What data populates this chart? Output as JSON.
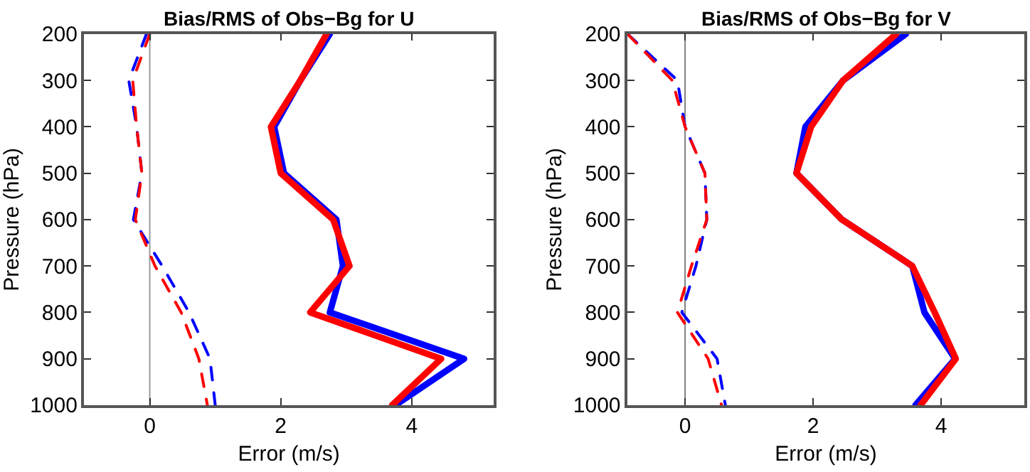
{
  "chart_data": [
    {
      "type": "line",
      "title": "Bias/RMS of Obs−Bg for U",
      "xlabel": "Error (m/s)",
      "ylabel": "Pressure (hPa)",
      "orientation": "horizontal",
      "x": [
        200,
        300,
        400,
        500,
        600,
        700,
        800,
        900,
        1000
      ],
      "series": [
        {
          "color": "#0000ff",
          "line_style": "solid",
          "values": [
            2.75,
            2.3,
            1.9,
            2.05,
            2.85,
            2.95,
            2.75,
            4.8,
            3.75
          ]
        },
        {
          "color": "#ff0000",
          "line_style": "solid",
          "values": [
            2.7,
            2.3,
            1.85,
            2.0,
            2.8,
            3.05,
            2.45,
            4.45,
            3.7
          ]
        },
        {
          "color": "#0000ff",
          "line_style": "dashed",
          "values": [
            -0.05,
            -0.32,
            -0.2,
            -0.12,
            -0.25,
            0.19,
            0.6,
            0.92,
            1.0
          ]
        },
        {
          "color": "#ff0000",
          "line_style": "dashed",
          "values": [
            0.0,
            -0.26,
            -0.2,
            -0.12,
            -0.22,
            0.08,
            0.48,
            0.75,
            0.88
          ]
        }
      ],
      "xlim": [
        -1,
        5.25
      ],
      "xticks": [
        0,
        2,
        4
      ],
      "ylim": [
        1000,
        200
      ],
      "yticks": [
        200,
        300,
        400,
        500,
        600,
        700,
        800,
        900,
        1000
      ],
      "ref_lines": [
        {
          "axis": "x",
          "value": 0,
          "color": "#999999"
        }
      ],
      "grid": false,
      "marker": "none"
    },
    {
      "type": "line",
      "title": "Bias/RMS of Obs−Bg for V",
      "xlabel": "Error (m/s)",
      "ylabel": "Pressure (hPa)",
      "orientation": "horizontal",
      "x": [
        200,
        300,
        400,
        500,
        600,
        700,
        800,
        900,
        1000
      ],
      "series": [
        {
          "color": "#0000ff",
          "line_style": "solid",
          "values": [
            3.45,
            2.47,
            1.88,
            1.74,
            2.45,
            3.55,
            3.74,
            4.22,
            3.6
          ]
        },
        {
          "color": "#ff0000",
          "line_style": "solid",
          "values": [
            3.3,
            2.47,
            1.97,
            1.74,
            2.45,
            3.55,
            3.9,
            4.23,
            3.68
          ]
        },
        {
          "color": "#0000ff",
          "line_style": "dashed",
          "values": [
            -0.9,
            -0.12,
            0.0,
            0.31,
            0.34,
            0.17,
            -0.05,
            0.5,
            0.63
          ]
        },
        {
          "color": "#ff0000",
          "line_style": "dashed",
          "values": [
            -0.9,
            -0.2,
            0.0,
            0.31,
            0.34,
            0.1,
            -0.12,
            0.36,
            0.57
          ]
        }
      ],
      "xlim": [
        -0.9,
        5.3
      ],
      "xticks": [
        0,
        2,
        4
      ],
      "ylim": [
        1000,
        200
      ],
      "yticks": [
        200,
        300,
        400,
        500,
        600,
        700,
        800,
        900,
        1000
      ],
      "ref_lines": [
        {
          "axis": "x",
          "value": 0,
          "color": "#808080"
        }
      ],
      "grid": false,
      "marker": "none"
    }
  ]
}
